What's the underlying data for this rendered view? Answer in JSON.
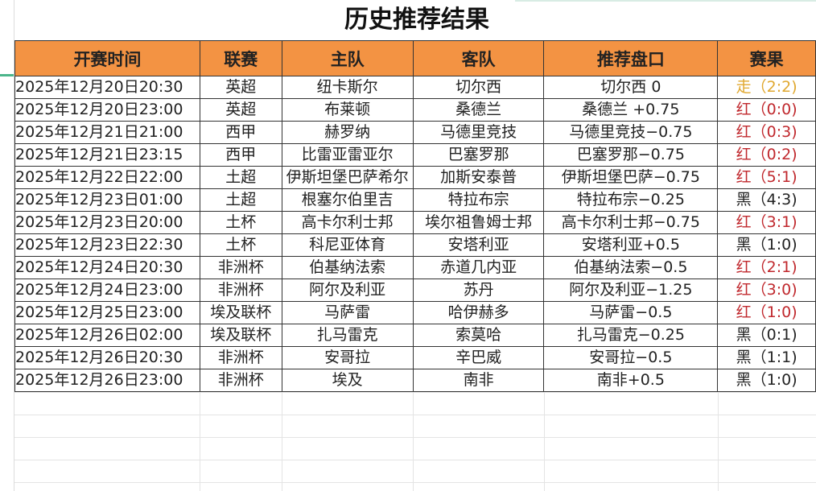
{
  "title": "历史推荐结果",
  "colors": {
    "header_bg": "#F39343",
    "push": "#E0A830",
    "win": "#C0282D",
    "loss": "#222222"
  },
  "columns": [
    "开赛时间",
    "联赛",
    "主队",
    "客队",
    "推荐盘口",
    "赛果"
  ],
  "rows": [
    {
      "time": "2025年12月20日20:30",
      "league": "英超",
      "home": "纽卡斯尔",
      "away": "切尔西",
      "pick": "切尔西 0",
      "result": "走（2:2)",
      "status": "push"
    },
    {
      "time": "2025年12月20日23:00",
      "league": "英超",
      "home": "布莱顿",
      "away": "桑德兰",
      "pick": "桑德兰 +0.75",
      "result": "红（0:0)",
      "status": "win"
    },
    {
      "time": "2025年12月21日21:00",
      "league": "西甲",
      "home": "赫罗纳",
      "away": "马德里竞技",
      "pick": "马德里竞技−0.75",
      "result": "红（0:3)",
      "status": "win"
    },
    {
      "time": "2025年12月21日23:15",
      "league": "西甲",
      "home": "比雷亚雷亚尔",
      "away": "巴塞罗那",
      "pick": "巴塞罗那−0.75",
      "result": "红（0:2)",
      "status": "win"
    },
    {
      "time": "2025年12月22日22:00",
      "league": "土超",
      "home": "伊斯坦堡巴萨希尔",
      "away": "加斯安泰普",
      "pick": "伊斯坦堡巴萨−0.75",
      "result": "红（5:1)",
      "status": "win"
    },
    {
      "time": "2025年12月23日01:00",
      "league": "土超",
      "home": "根塞尔伯里吉",
      "away": "特拉布宗",
      "pick": "特拉布宗−0.25",
      "result": "黑（4:3)",
      "status": "loss"
    },
    {
      "time": "2025年12月23日20:00",
      "league": "土杯",
      "home": "高卡尔利士邦",
      "away": "埃尔祖鲁姆士邦",
      "pick": "高卡尔利士邦−0.75",
      "result": "红（3:1)",
      "status": "win"
    },
    {
      "time": "2025年12月23日22:30",
      "league": "土杯",
      "home": "科尼亚体育",
      "away": "安塔利亚",
      "pick": "安塔利亚+0.5",
      "result": "黑（1:0)",
      "status": "loss"
    },
    {
      "time": "2025年12月24日20:30",
      "league": "非洲杯",
      "home": "伯基纳法索",
      "away": "赤道几内亚",
      "pick": "伯基纳法索−0.5",
      "result": "红（2:1)",
      "status": "win"
    },
    {
      "time": "2025年12月24日23:00",
      "league": "非洲杯",
      "home": "阿尔及利亚",
      "away": "苏丹",
      "pick": "阿尔及利亚−1.25",
      "result": "红（3:0)",
      "status": "win"
    },
    {
      "time": "2025年12月25日23:00",
      "league": "埃及联杯",
      "home": "马萨雷",
      "away": "哈伊赫多",
      "pick": "马萨雷−0.5",
      "result": "红（1:0)",
      "status": "win"
    },
    {
      "time": "2025年12月26日02:00",
      "league": "埃及联杯",
      "home": "扎马雷克",
      "away": "索莫哈",
      "pick": "扎马雷克−0.25",
      "result": "黑（0:1)",
      "status": "loss"
    },
    {
      "time": "2025年12月26日20:30",
      "league": "非洲杯",
      "home": "安哥拉",
      "away": "辛巴威",
      "pick": "安哥拉−0.5",
      "result": "黑（1:1)",
      "status": "loss"
    },
    {
      "time": "2025年12月26日23:00",
      "league": "非洲杯",
      "home": "埃及",
      "away": "南非",
      "pick": "南非+0.5",
      "result": "黑（1:0)",
      "status": "loss"
    }
  ]
}
